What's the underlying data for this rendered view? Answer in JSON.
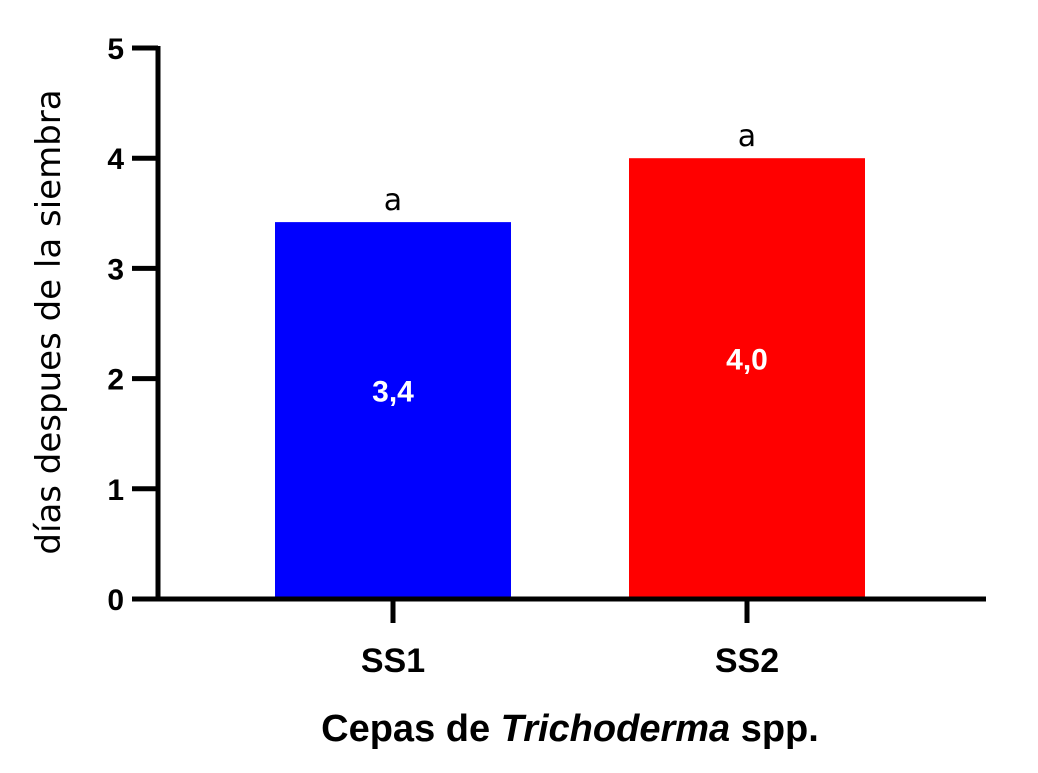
{
  "chart_data": {
    "type": "bar",
    "categories": [
      "SS1",
      "SS2"
    ],
    "values": [
      3.42,
      4.0
    ],
    "value_labels": [
      "3,4",
      "4,0"
    ],
    "significance_letters": [
      "a",
      "a"
    ],
    "bar_colors": [
      "#0000ff",
      "#ff0000"
    ],
    "ylabel": "días despues de la siembra",
    "xlabel": {
      "prefix": "Cepas de ",
      "italic": "Trichoderma",
      "suffix": " spp."
    },
    "ylim": [
      0,
      5
    ],
    "yticks": [
      "0",
      "1",
      "2",
      "3",
      "4",
      "5"
    ],
    "grid": false,
    "legend": "none"
  }
}
